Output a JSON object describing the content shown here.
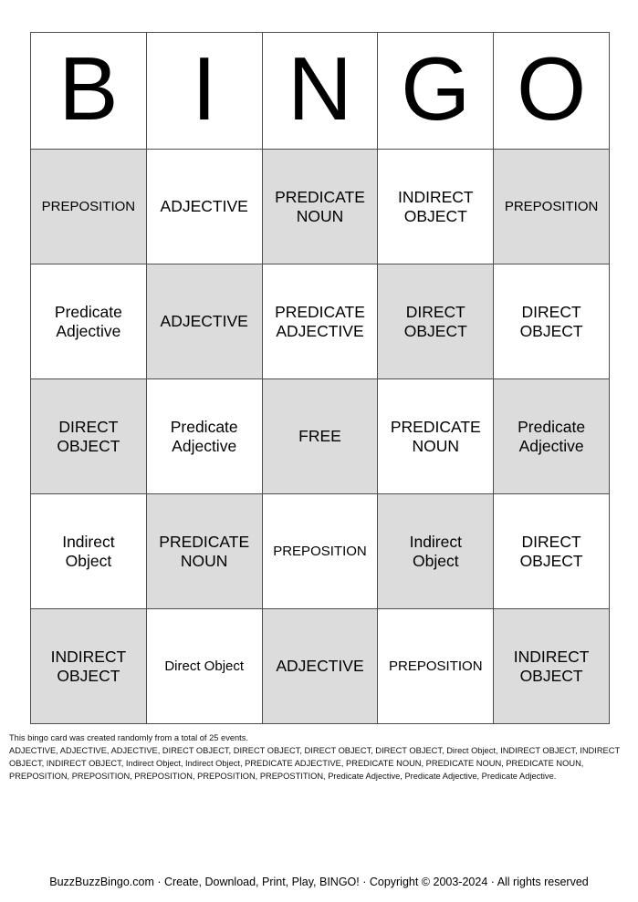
{
  "bingo_header": {
    "letters": [
      "B",
      "I",
      "N",
      "G",
      "O"
    ]
  },
  "grid": {
    "cells": [
      {
        "label": "PREPOSITION",
        "shaded": true
      },
      {
        "label": "ADJECTIVE",
        "shaded": false
      },
      {
        "label": "PREDICATE\nNOUN",
        "shaded": true
      },
      {
        "label": "INDIRECT\nOBJECT",
        "shaded": false
      },
      {
        "label": "PREPOSITION",
        "shaded": true
      },
      {
        "label": "Predicate\nAdjective",
        "shaded": false
      },
      {
        "label": "ADJECTIVE",
        "shaded": true
      },
      {
        "label": "PREDICATE\nADJECTIVE",
        "shaded": false
      },
      {
        "label": "DIRECT\nOBJECT",
        "shaded": true
      },
      {
        "label": "DIRECT\nOBJECT",
        "shaded": false
      },
      {
        "label": "DIRECT\nOBJECT",
        "shaded": true
      },
      {
        "label": "Predicate\nAdjective",
        "shaded": false
      },
      {
        "label": "FREE",
        "shaded": true
      },
      {
        "label": "PREDICATE\nNOUN",
        "shaded": false
      },
      {
        "label": "Predicate\nAdjective",
        "shaded": true
      },
      {
        "label": "Indirect\nObject",
        "shaded": false
      },
      {
        "label": "PREDICATE\nNOUN",
        "shaded": true
      },
      {
        "label": "PREPOSITION",
        "shaded": false
      },
      {
        "label": "Indirect\nObject",
        "shaded": true
      },
      {
        "label": "DIRECT\nOBJECT",
        "shaded": false
      },
      {
        "label": "INDIRECT\nOBJECT",
        "shaded": true
      },
      {
        "label": "Direct Object",
        "shaded": false
      },
      {
        "label": "ADJECTIVE",
        "shaded": true
      },
      {
        "label": "PREPOSITION",
        "shaded": false
      },
      {
        "label": "INDIRECT\nOBJECT",
        "shaded": true
      }
    ]
  },
  "fine_print": {
    "intro": "This bingo card was created randomly from a total of 25 events.",
    "events_list": "ADJECTIVE, ADJECTIVE, ADJECTIVE, DIRECT OBJECT, DIRECT OBJECT, DIRECT OBJECT, DIRECT OBJECT, Direct Object, INDIRECT OBJECT, INDIRECT OBJECT, INDIRECT OBJECT, Indirect Object, Indirect Object, PREDICATE ADJECTIVE, PREDICATE NOUN, PREDICATE NOUN, PREDICATE NOUN, PREPOSITION, PREPOSITION, PREPOSITION, PREPOSITION, PREPOSTITION, Predicate Adjective, Predicate Adjective, Predicate Adjective."
  },
  "footer": {
    "text": "BuzzBuzzBingo.com · Create, Download, Print, Play, BINGO! · Copyright © 2003-2024 · All rights reserved"
  },
  "colors": {
    "shaded_cell": "#dcdcdc",
    "grid_border": "#4e4e4e",
    "text": "#000000",
    "background": "#ffffff"
  }
}
